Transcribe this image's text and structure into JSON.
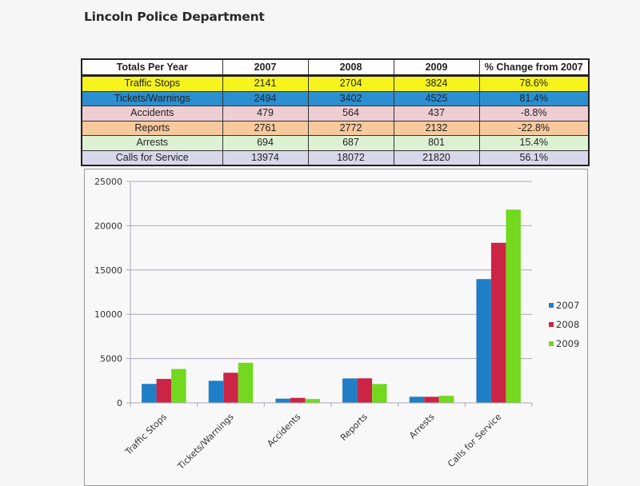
{
  "page": {
    "title": "Lincoln Police Department"
  },
  "table": {
    "headers": [
      "Totals Per Year",
      "2007",
      "2008",
      "2009",
      "% Change from 2007"
    ],
    "rows": [
      {
        "label": "Traffic Stops",
        "v2007": "2141",
        "v2008": "2704",
        "v2009": "3824",
        "change": "78.6%",
        "color": "#f7f31c"
      },
      {
        "label": "Tickets/Warnings",
        "v2007": "2494",
        "v2008": "3402",
        "v2009": "4525",
        "change": "81.4%",
        "color": "#2b8fd0"
      },
      {
        "label": "Accidents",
        "v2007": "479",
        "v2008": "564",
        "v2009": "437",
        "change": "-8.8%",
        "color": "#eecdd3"
      },
      {
        "label": "Reports",
        "v2007": "2761",
        "v2008": "2772",
        "v2009": "2132",
        "change": "-22.8%",
        "color": "#f7c99c"
      },
      {
        "label": "Arrests",
        "v2007": "694",
        "v2008": "687",
        "v2009": "801",
        "change": "15.4%",
        "color": "#ddf2d3"
      },
      {
        "label": "Calls for Service",
        "v2007": "13974",
        "v2008": "18072",
        "v2009": "21820",
        "change": "56.1%",
        "color": "#d9d7ea"
      }
    ]
  },
  "chart_data": {
    "type": "bar",
    "title": "",
    "xlabel": "",
    "ylabel": "",
    "categories": [
      "Traffic Stops",
      "Tickets/Warnings",
      "Accidents",
      "Reports",
      "Arrests",
      "Calls for Service"
    ],
    "series": [
      {
        "name": "2007",
        "color": "#1f7fc6",
        "values": [
          2141,
          2494,
          479,
          2761,
          694,
          13974
        ]
      },
      {
        "name": "2008",
        "color": "#cc2445",
        "values": [
          2704,
          3402,
          564,
          2772,
          687,
          18072
        ]
      },
      {
        "name": "2009",
        "color": "#72d91e",
        "values": [
          3824,
          4525,
          437,
          2132,
          801,
          21820
        ]
      }
    ],
    "ylim": [
      0,
      25000
    ],
    "yticks": [
      0,
      5000,
      10000,
      15000,
      20000,
      25000
    ],
    "ytick_labels": [
      "0",
      "5000",
      "10000",
      "15000",
      "20000",
      "25000"
    ],
    "grid": true,
    "legend": "right",
    "xtick_rotation": "-45deg"
  }
}
